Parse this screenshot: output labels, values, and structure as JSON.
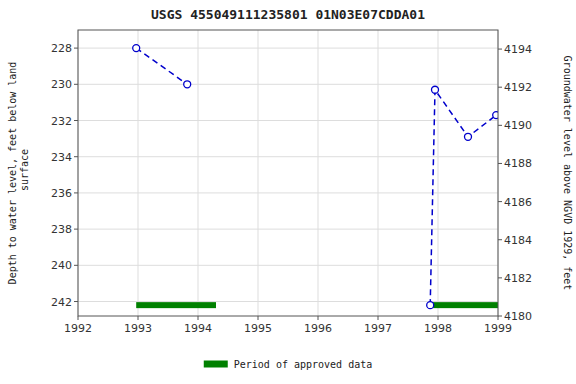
{
  "chart_data": {
    "type": "line",
    "title": "USGS 455049111235801 01N03E07CDDA01",
    "y_label": "Depth to water level, feet below land\n surface",
    "y2_label": "Groundwater level above NGVD 1929, feet",
    "xlim": [
      1992,
      1999
    ],
    "xticks": [
      1992,
      1993,
      1994,
      1995,
      1996,
      1997,
      1998,
      1999
    ],
    "ylim": [
      242.8,
      227.0
    ],
    "yticks": [
      228,
      230,
      232,
      234,
      236,
      238,
      240,
      242
    ],
    "y2lim": [
      4180,
      4195
    ],
    "y2ticks": [
      4180,
      4182,
      4184,
      4186,
      4188,
      4190,
      4192,
      4194
    ],
    "grid": true,
    "legend": "bottom",
    "series": [
      {
        "x": [
          1992.97,
          1993.82
        ],
        "values": [
          228.0,
          230.0
        ],
        "color": "#0000cc",
        "line_style": "dashed",
        "marker": "circle"
      },
      {
        "x": [
          1997.87,
          1997.95,
          1998.5,
          1998.97
        ],
        "values": [
          242.2,
          230.3,
          232.9,
          231.7
        ],
        "color": "#0000cc",
        "line_style": "dashed",
        "marker": "circle"
      },
      {
        "name": "Period of approved data",
        "type": "bar",
        "orientation": "horizontal",
        "color": "#008000",
        "x_start": [
          1992.97,
          1997.87
        ],
        "x_end": [
          1994.3,
          1999.0
        ],
        "values": [
          242.2,
          242.2
        ]
      }
    ]
  }
}
